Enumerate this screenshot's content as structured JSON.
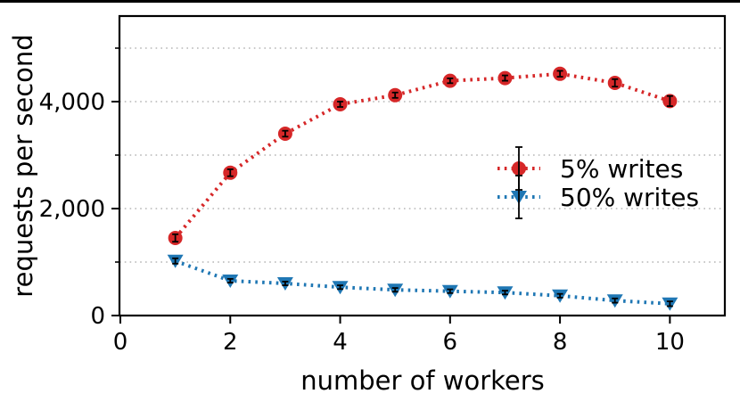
{
  "figure": {
    "background": "#ffffff",
    "top_rule_color": "#000000",
    "spine_color": "#000000"
  },
  "chart_data": {
    "type": "line",
    "title": "",
    "xlabel": "number of workers",
    "ylabel": "requests per second",
    "x": [
      1,
      2,
      3,
      4,
      5,
      6,
      7,
      8,
      9,
      10
    ],
    "series": [
      {
        "name": "5% writes",
        "color": "#d62728",
        "marker": "circle",
        "line_style": "dotted",
        "values": [
          1450,
          2670,
          3400,
          3950,
          4120,
          4390,
          4440,
          4520,
          4350,
          4010
        ],
        "errors": [
          70,
          65,
          55,
          50,
          50,
          45,
          50,
          55,
          70,
          95
        ]
      },
      {
        "name": "50% writes",
        "color": "#1f77b4",
        "marker": "triangle-down",
        "line_style": "dotted",
        "values": [
          1020,
          650,
          600,
          530,
          480,
          455,
          430,
          370,
          280,
          220
        ],
        "errors": [
          50,
          35,
          35,
          35,
          35,
          35,
          35,
          35,
          40,
          45
        ]
      }
    ],
    "error_bar_color": "#000000",
    "xlim": [
      0,
      11
    ],
    "ylim": [
      0,
      5600
    ],
    "xticks": {
      "major": [
        0,
        2,
        4,
        6,
        8,
        10
      ],
      "labels": [
        "0",
        "2",
        "4",
        "6",
        "8",
        "10"
      ]
    },
    "yticks": {
      "major": [
        0,
        2000,
        4000
      ],
      "labels": [
        "0",
        "2,000",
        "4,000"
      ],
      "minor": [
        1000,
        3000,
        5000
      ]
    },
    "gridlines": {
      "y": [
        1000,
        2000,
        3000,
        4000,
        5000
      ],
      "style": "dotted",
      "color": "#b5b5b5",
      "vertical": false
    },
    "legend": {
      "position": "center-right",
      "frame": false,
      "entries": [
        "5% writes",
        "50% writes"
      ]
    }
  }
}
